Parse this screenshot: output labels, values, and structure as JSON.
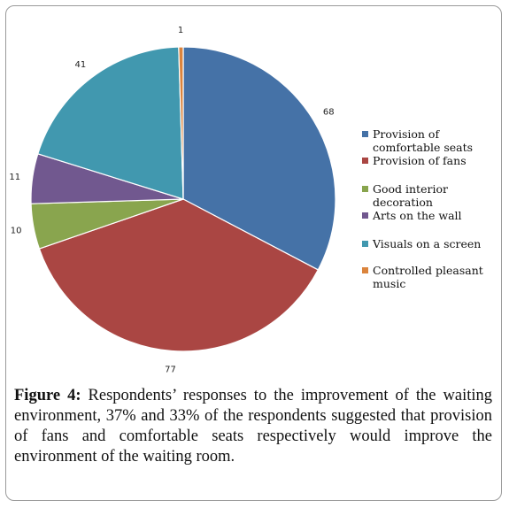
{
  "chart_data": {
    "type": "pie",
    "title": "",
    "slices": [
      {
        "label": "Provision of comfortable seats",
        "value": 68,
        "color": "#4572a7"
      },
      {
        "label": "Provision of fans",
        "value": 77,
        "color": "#aa4643"
      },
      {
        "label": "Good interior decoration",
        "value": 10,
        "color": "#89a54e"
      },
      {
        "label": "Arts on the wall",
        "value": 11,
        "color": "#71588f"
      },
      {
        "label": "Visuals on a screen",
        "value": 41,
        "color": "#4198af"
      },
      {
        "label": "Controlled pleasant music",
        "value": 1,
        "color": "#db843d"
      }
    ],
    "legend_position": "right",
    "data_labels": true
  },
  "caption": {
    "figure_label": "Figure 4:",
    "text": " Respondents’ responses to the improvement of the waiting environment, 37% and 33% of the respondents suggested that provision of fans and comfortable seats respectively would improve the environment of the waiting room."
  }
}
